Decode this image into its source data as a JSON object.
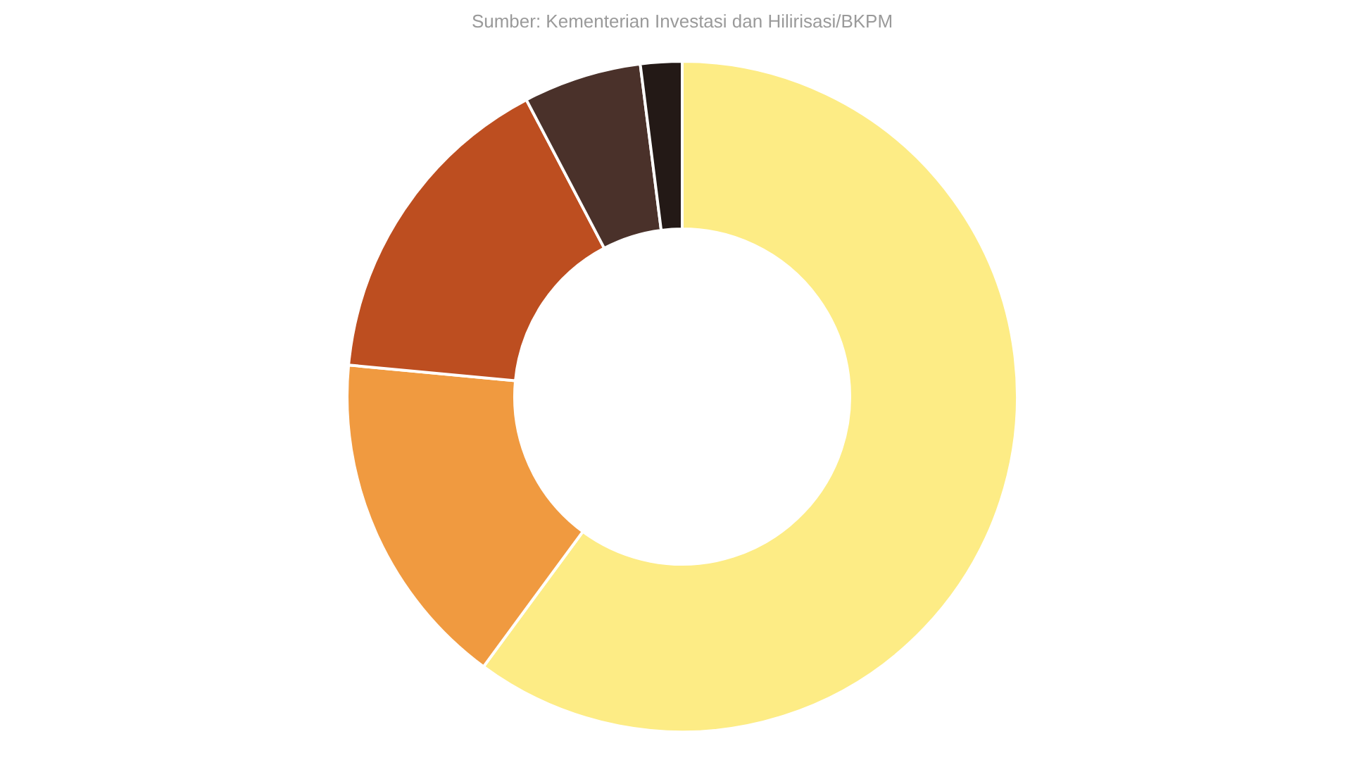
{
  "chart_data": {
    "type": "donut",
    "annotations": [
      "Sumber: Kementerian Investasi dan Hilirisasi/BKPM"
    ],
    "categories": [
      null,
      null,
      null,
      null,
      null
    ],
    "values": [
      60.1,
      16.4,
      15.8,
      5.7,
      2.0
    ],
    "colors": [
      "#fdec85",
      "#f09a40",
      "#bd4e20",
      "#4a312a",
      "#231916"
    ]
  }
}
